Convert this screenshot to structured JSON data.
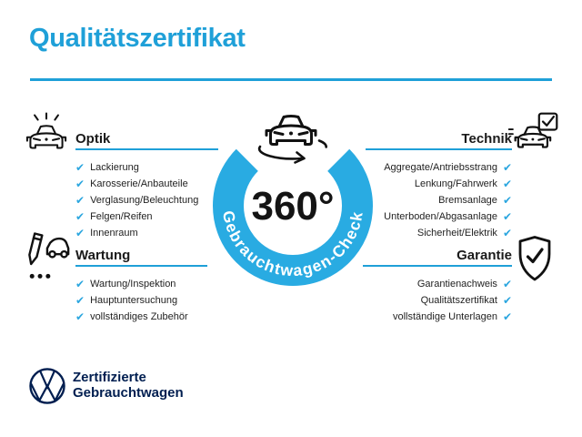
{
  "title": "Qualitätszertifikat",
  "center": {
    "degrees": "360°",
    "ring_label": "Gebrauchtwagen-Check"
  },
  "sections": {
    "optik": {
      "heading": "Optik",
      "items": [
        "Lackierung",
        "Karosserie/Anbauteile",
        "Verglasung/Beleuchtung",
        "Felgen/Reifen",
        "Innenraum"
      ]
    },
    "technik": {
      "heading": "Technik",
      "items": [
        "Aggregate/Antriebsstrang",
        "Lenkung/Fahrwerk",
        "Bremsanlage",
        "Unterboden/Abgasanlage",
        "Sicherheit/Elektrik"
      ]
    },
    "wartung": {
      "heading": "Wartung",
      "items": [
        "Wartung/Inspektion",
        "Hauptuntersuchung",
        "vollständiges Zubehör"
      ]
    },
    "garantie": {
      "heading": "Garantie",
      "items": [
        "Garantienachweis",
        "Qualitätszertifikat",
        "vollständige Unterlagen"
      ]
    }
  },
  "footer": {
    "brand_line1": "Zertifizierte",
    "brand_line2": "Gebrauchtwagen"
  },
  "check_glyph": "✔",
  "icons": {
    "optik": "car-shine-icon",
    "wartung": "pencil-car-checklist-icon",
    "technik": "car-checkbox-icon",
    "garantie": "shield-check-icon",
    "center": "car-360-rotation-icon",
    "brand": "vw-logo"
  },
  "colors": {
    "accent": "#1FA0D8",
    "ring": "#29ABE2",
    "check": "#2BA6DF",
    "navy": "#001E50"
  }
}
